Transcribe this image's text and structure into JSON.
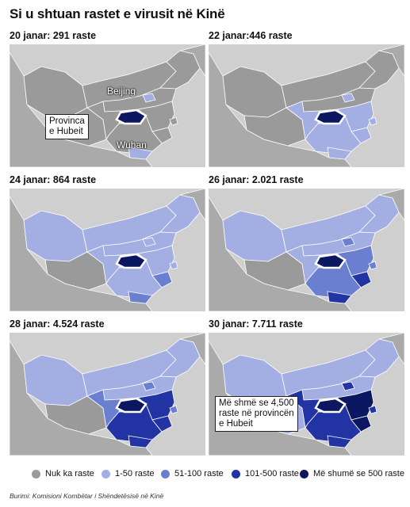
{
  "title": "Si u shtuan rastet e virusit në Kinë",
  "colors": {
    "land": "#aaaaaa",
    "sea": "#cfcfcf",
    "none": "#9a9a9a",
    "c1": "#a3aee3",
    "c2": "#6b7fd1",
    "c3": "#2234a3",
    "c4": "#0b1760"
  },
  "panels": [
    {
      "label": "20 janar: 291 raste",
      "fills": {
        "hubei": "c4",
        "beijing": "c1",
        "shanghai": "none",
        "guangdong": "c1",
        "zhejiang": "none",
        "west": "none",
        "north": "none",
        "northeast": "none",
        "tibet": "none",
        "xinjiang": "none",
        "inner": "none",
        "south": "none",
        "east": "none"
      }
    },
    {
      "label": "22 janar:446 raste",
      "fills": {
        "hubei": "c4",
        "beijing": "c1",
        "shanghai": "c1",
        "guangdong": "c1",
        "zhejiang": "c1",
        "west": "c1",
        "north": "none",
        "northeast": "none",
        "tibet": "none",
        "xinjiang": "none",
        "inner": "none",
        "south": "c1",
        "east": "c1"
      }
    },
    {
      "label": "24 janar: 864 raste",
      "fills": {
        "hubei": "c4",
        "beijing": "c1",
        "shanghai": "c1",
        "guangdong": "c2",
        "zhejiang": "c2",
        "west": "c1",
        "north": "c1",
        "northeast": "c1",
        "tibet": "none",
        "xinjiang": "c1",
        "inner": "c1",
        "south": "c1",
        "east": "c1"
      }
    },
    {
      "label": "26 janar: 2.021 raste",
      "fills": {
        "hubei": "c4",
        "beijing": "c2",
        "shanghai": "c2",
        "guangdong": "c3",
        "zhejiang": "c3",
        "west": "c1",
        "north": "c1",
        "northeast": "c1",
        "tibet": "none",
        "xinjiang": "c1",
        "inner": "c1",
        "south": "c2",
        "east": "c2"
      }
    },
    {
      "label": "28 janar: 4.524 raste",
      "fills": {
        "hubei": "c4",
        "beijing": "c2",
        "shanghai": "c2",
        "guangdong": "c3",
        "zhejiang": "c3",
        "west": "c2",
        "north": "c1",
        "northeast": "c1",
        "tibet": "none",
        "xinjiang": "c1",
        "inner": "c1",
        "south": "c3",
        "east": "c3"
      }
    },
    {
      "label": "30 janar: 7.711 raste",
      "fills": {
        "hubei": "c4",
        "beijing": "c3",
        "shanghai": "c3",
        "guangdong": "c3",
        "zhejiang": "c4",
        "west": "c3",
        "north": "c1",
        "northeast": "c1",
        "tibet": "c1",
        "xinjiang": "c1",
        "inner": "c1",
        "south": "c3",
        "east": "c4"
      }
    }
  ],
  "callout_hubei": "Provinca\ne Hubeit",
  "label_beijing": "Beijing",
  "label_wuhan": "Wuhan",
  "callout_500": "Më shmë se 4,500\nraste në provincën\ne Hubeit",
  "legend": [
    {
      "label": "Nuk ka raste",
      "color": "none"
    },
    {
      "label": "1-50 raste",
      "color": "c1"
    },
    {
      "label": "51-100 raste",
      "color": "c2"
    },
    {
      "label": "101-500 raste",
      "color": "c3"
    },
    {
      "label": "Më shumë se 500 raste",
      "color": "c4"
    }
  ],
  "source": "Burimi: Komisioni Kombëtar i Shëndetësisë në Kinë"
}
